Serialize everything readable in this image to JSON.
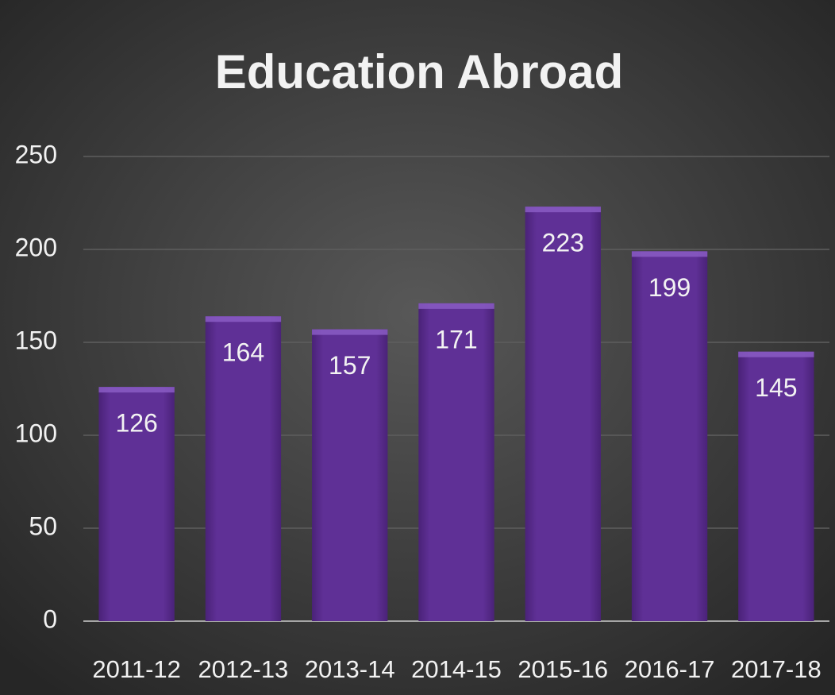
{
  "chart_data": {
    "type": "bar",
    "title": "Education Abroad",
    "categories": [
      "2011-12",
      "2012-13",
      "2013-14",
      "2014-15",
      "2015-16",
      "2016-17",
      "2017-18"
    ],
    "values": [
      126,
      164,
      157,
      171,
      223,
      199,
      145
    ],
    "color": "#5a2d90",
    "ylim": [
      0,
      250
    ],
    "yticks": [
      0,
      50,
      100,
      150,
      200,
      250
    ],
    "grid": true
  }
}
